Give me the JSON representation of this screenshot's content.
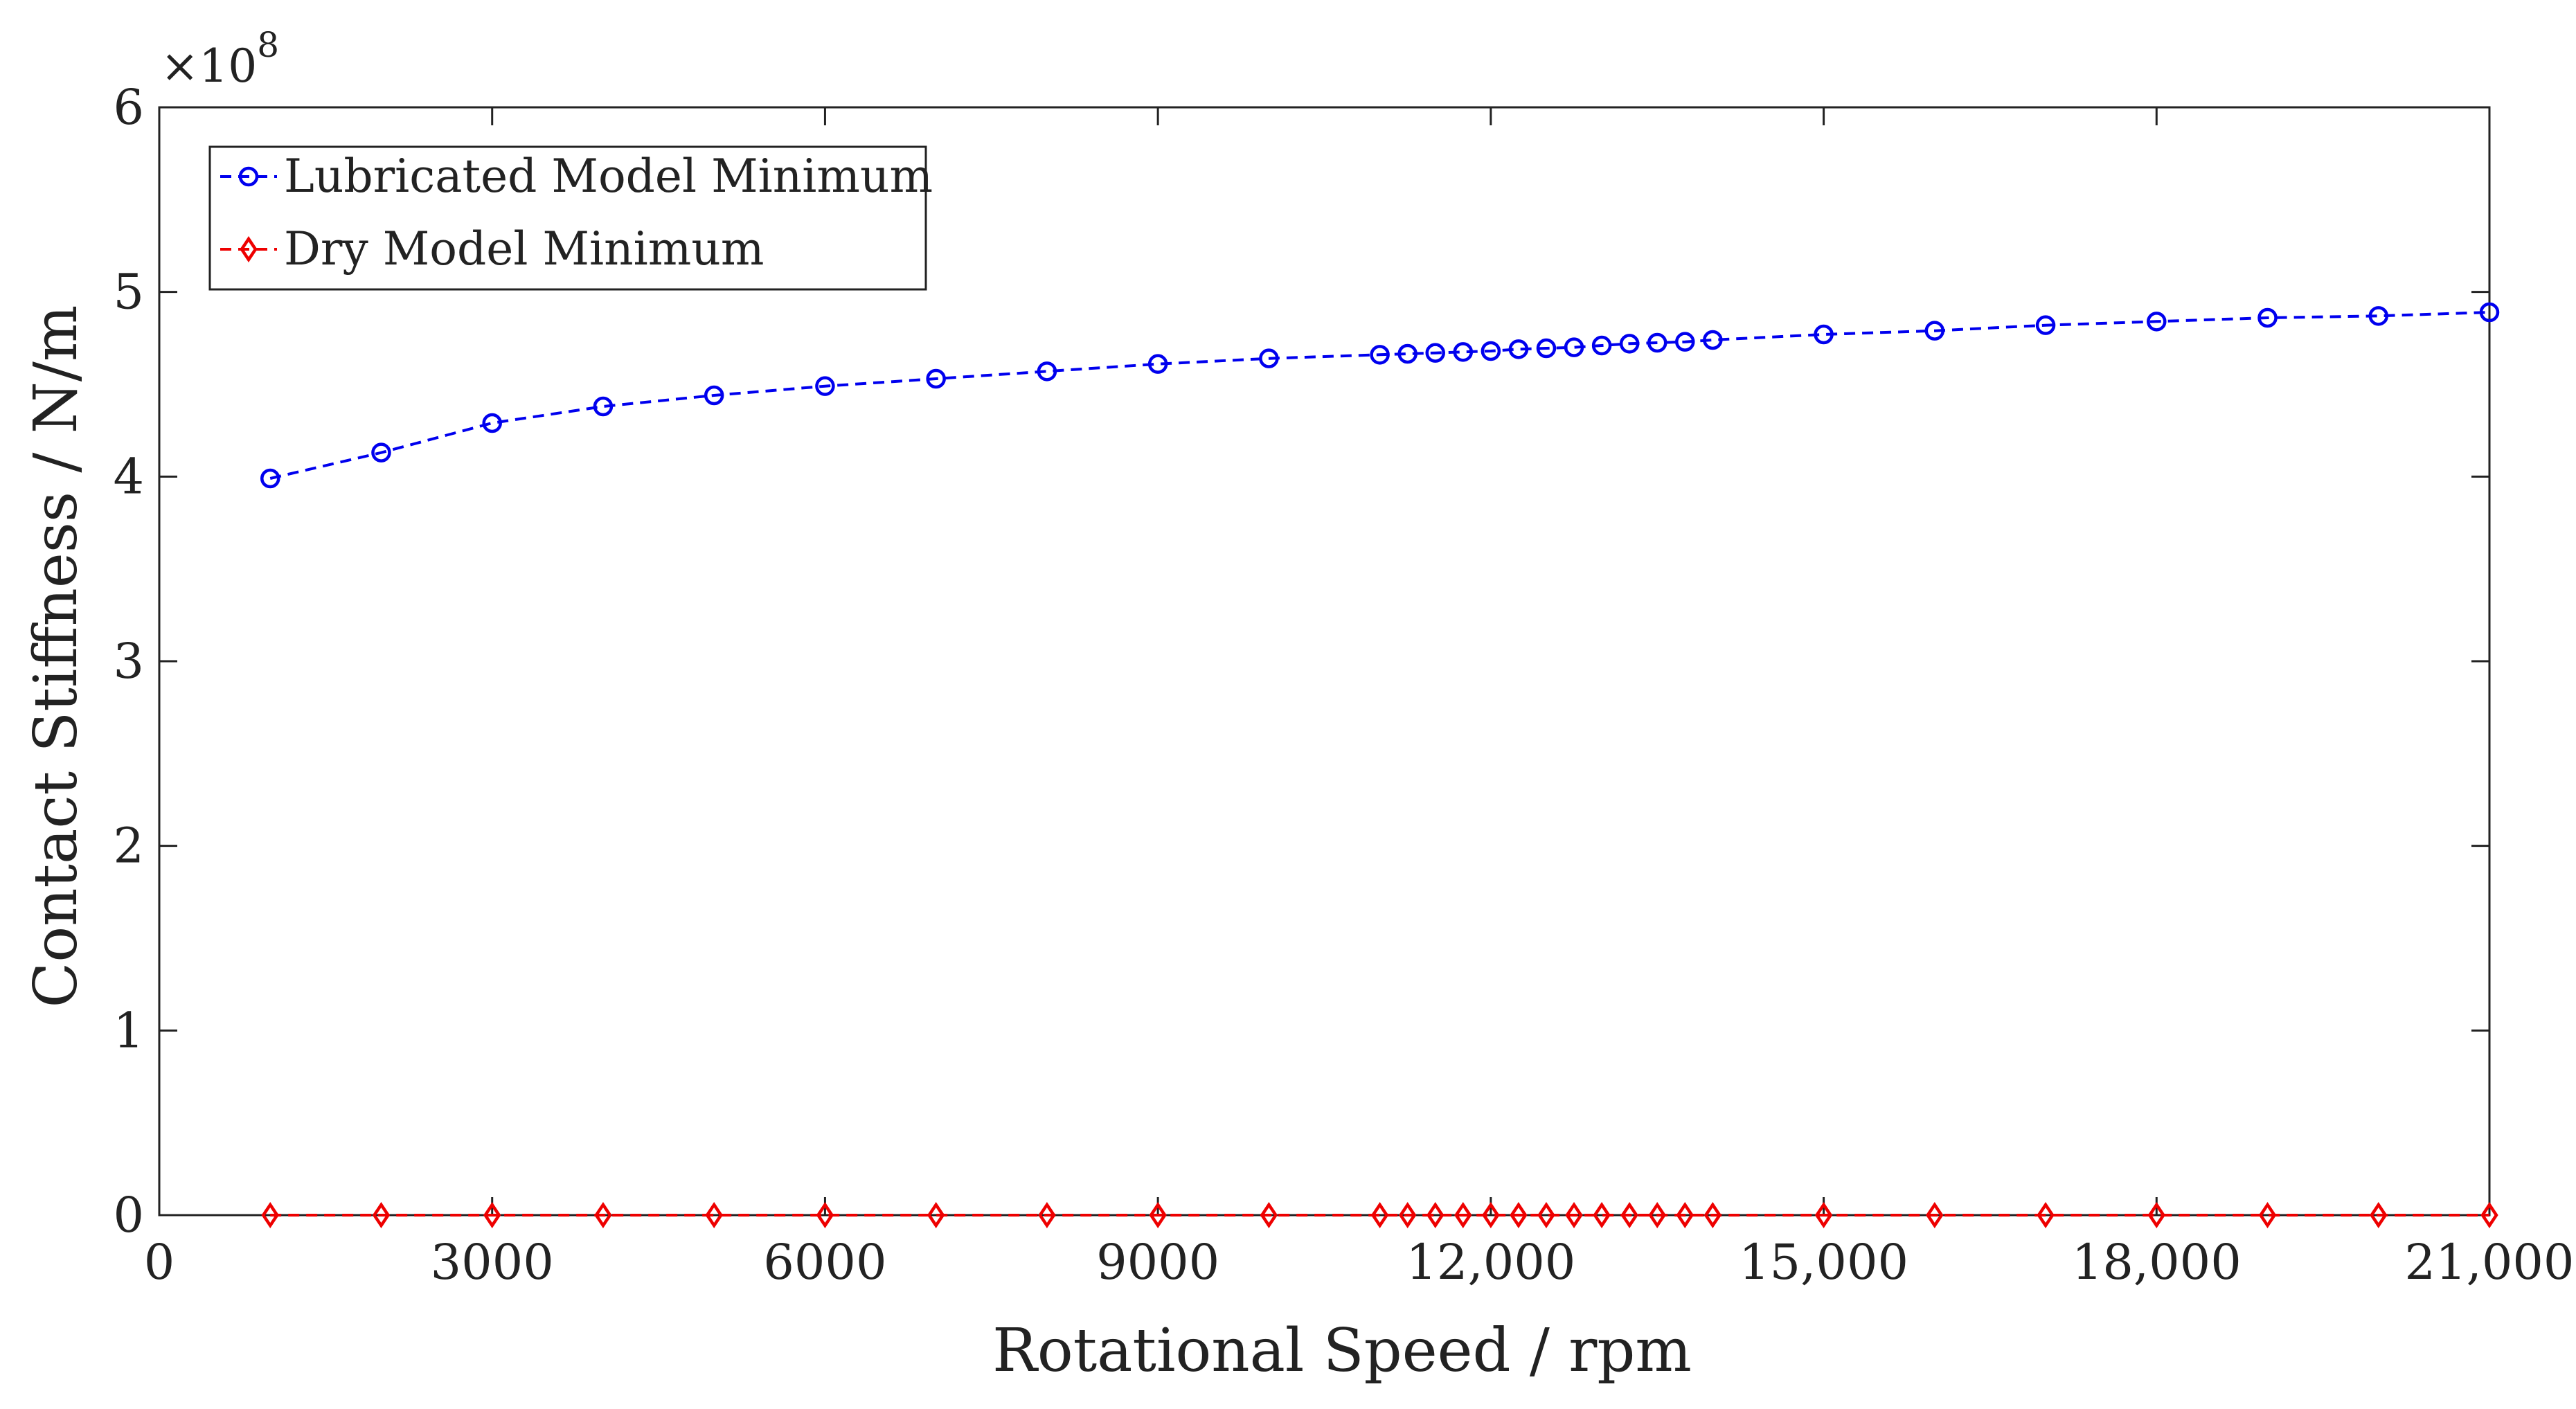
{
  "chart_data": {
    "type": "line",
    "title": "",
    "xlabel": "Rotational Speed / rpm",
    "ylabel": "Contact Stiffness / N/m",
    "y_exponent_label": "×10",
    "y_exponent_power": "8",
    "xlim": [
      0,
      21000
    ],
    "ylim": [
      0,
      6
    ],
    "x_ticks": [
      0,
      3000,
      6000,
      9000,
      12000,
      15000,
      18000,
      21000
    ],
    "x_tick_labels": [
      "0",
      "3000",
      "6000",
      "9000",
      "12,000",
      "15,000",
      "18,000",
      "21,000"
    ],
    "y_ticks": [
      0,
      1,
      2,
      3,
      4,
      5,
      6
    ],
    "y_tick_labels": [
      "0",
      "1",
      "2",
      "3",
      "4",
      "5",
      "6"
    ],
    "legend_position": "top-left",
    "series": [
      {
        "name": "Lubricated Model Minimum",
        "color": "#0000ee",
        "marker": "circle",
        "line_style": "dashed",
        "x": [
          1000,
          2000,
          3000,
          4000,
          5000,
          6000,
          7000,
          8000,
          9000,
          10000,
          11000,
          11250,
          11500,
          11750,
          12000,
          12250,
          12500,
          12750,
          13000,
          13250,
          13500,
          13750,
          14000,
          15000,
          16000,
          17000,
          18000,
          19000,
          20000,
          21000
        ],
        "y": [
          3.99,
          4.13,
          4.29,
          4.38,
          4.44,
          4.49,
          4.53,
          4.57,
          4.61,
          4.64,
          4.66,
          4.665,
          4.67,
          4.675,
          4.68,
          4.69,
          4.695,
          4.7,
          4.71,
          4.72,
          4.725,
          4.73,
          4.74,
          4.77,
          4.79,
          4.82,
          4.84,
          4.86,
          4.87,
          4.89
        ]
      },
      {
        "name": "Dry Model Minimum",
        "color": "#ee0000",
        "marker": "diamond",
        "line_style": "dashed",
        "x": [
          1000,
          2000,
          3000,
          4000,
          5000,
          6000,
          7000,
          8000,
          9000,
          10000,
          11000,
          11250,
          11500,
          11750,
          12000,
          12250,
          12500,
          12750,
          13000,
          13250,
          13500,
          13750,
          14000,
          15000,
          16000,
          17000,
          18000,
          19000,
          20000,
          21000
        ],
        "y": [
          0,
          0,
          0,
          0,
          0,
          0,
          0,
          0,
          0,
          0,
          0,
          0,
          0,
          0,
          0,
          0,
          0,
          0,
          0,
          0,
          0,
          0,
          0,
          0,
          0,
          0,
          0,
          0,
          0,
          0
        ]
      }
    ]
  }
}
